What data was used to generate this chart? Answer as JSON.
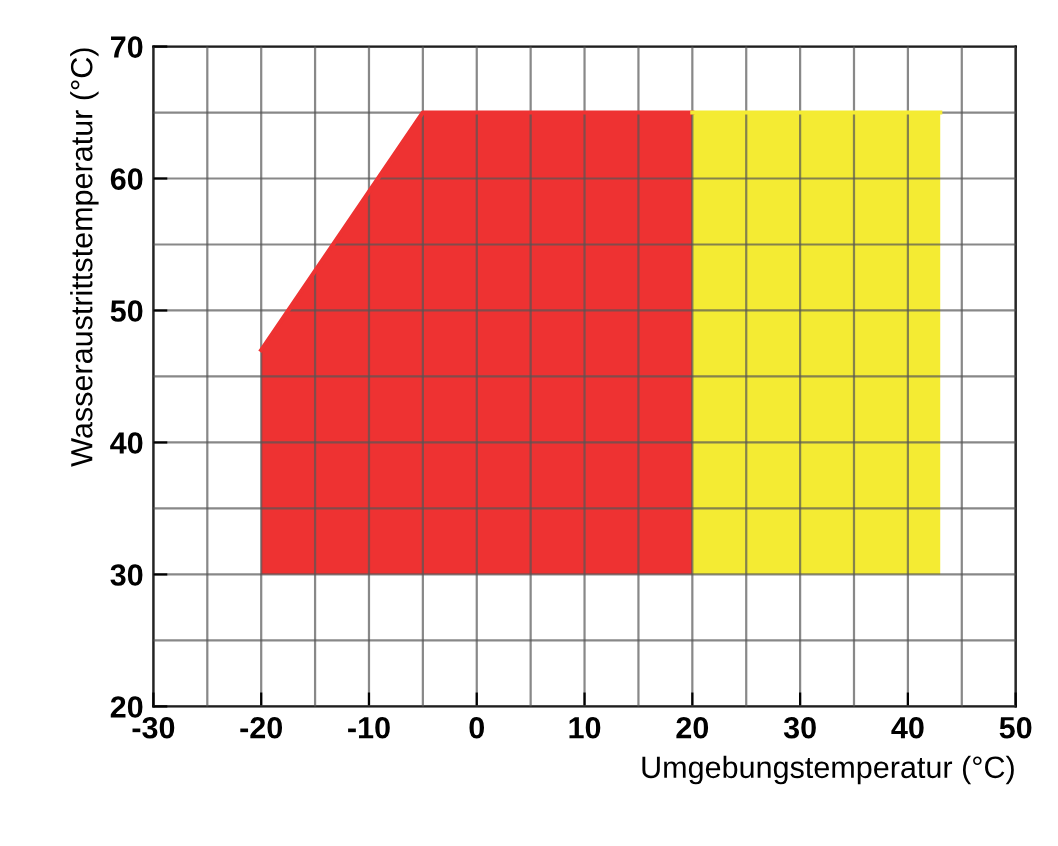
{
  "chart_data": {
    "type": "line",
    "xlabel": "Umgebungstemperatur (°C)",
    "ylabel": "Wasseraustrittstemperatur (°C)",
    "series": [
      {
        "color": "#ee3232",
        "x": [
          -20,
          -5,
          20
        ],
        "values": [
          47,
          65,
          65
        ],
        "lower": [
          30,
          30,
          30
        ],
        "upper": [
          47,
          65,
          65
        ]
      },
      {
        "color": "#f4eb33",
        "x": [
          20,
          43
        ],
        "values": [
          65,
          65
        ],
        "lower": [
          30,
          30
        ],
        "upper": [
          65,
          65
        ]
      }
    ],
    "xlim": [
      -30,
      50
    ],
    "ylim": [
      20,
      70
    ],
    "xticks": [
      -30,
      {
        "value": -25,
        "label": null
      },
      -20,
      {
        "value": -15,
        "label": null
      },
      -10,
      {
        "value": -5,
        "label": null
      },
      0,
      {
        "value": 5,
        "label": null
      },
      10,
      {
        "value": 15,
        "label": null
      },
      20,
      {
        "value": 25,
        "label": null
      },
      30,
      {
        "value": 35,
        "label": null
      },
      40,
      {
        "value": 45,
        "label": null
      },
      50
    ],
    "yticks": [
      20,
      {
        "value": 25,
        "label": null
      },
      30,
      {
        "value": 35,
        "label": null
      },
      40,
      {
        "value": 45,
        "label": null
      },
      50,
      {
        "value": 55,
        "label": null
      },
      60,
      {
        "value": 65,
        "label": null
      },
      70
    ],
    "grid": true
  }
}
